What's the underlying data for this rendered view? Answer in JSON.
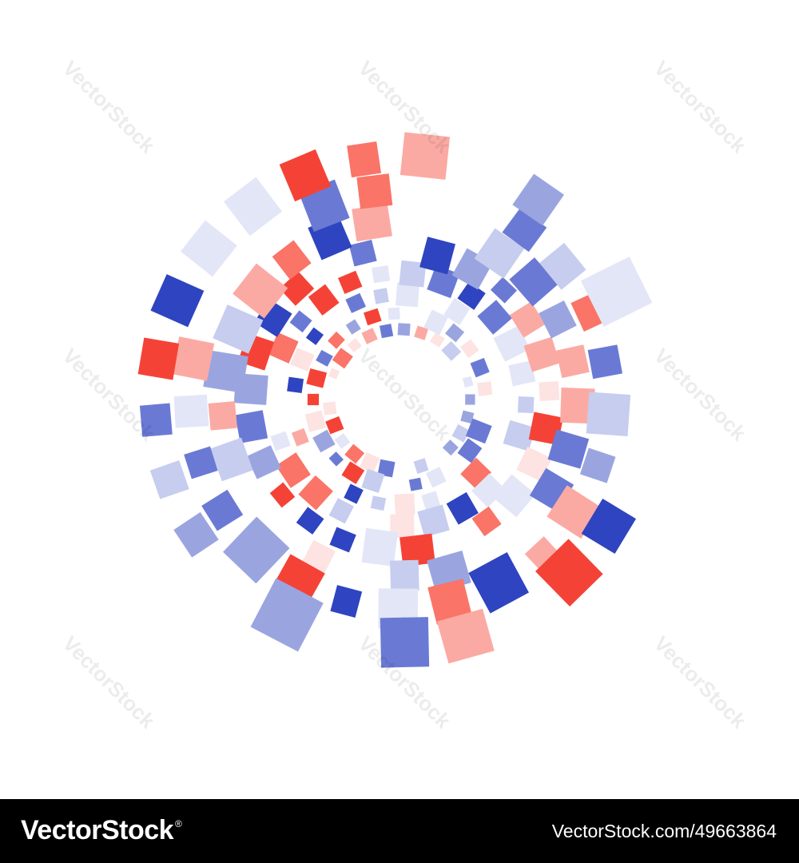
{
  "watermark": "VectorStock",
  "footer": {
    "brand": "VectorStock",
    "id": "VectorStock.com/49663864"
  }
}
